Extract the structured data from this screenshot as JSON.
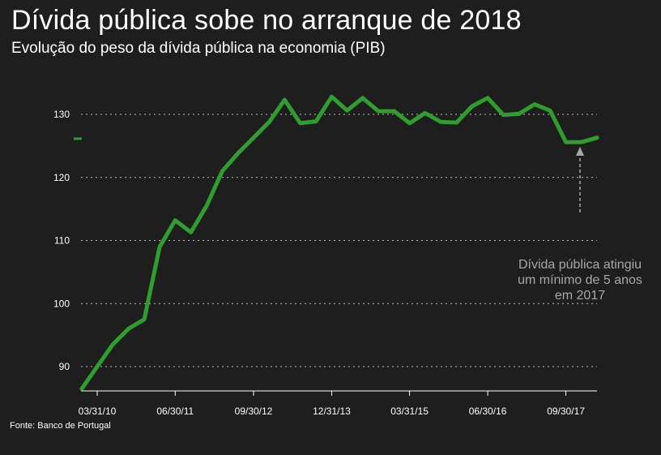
{
  "title": "Dívida pública sobe no arranque de 2018",
  "subtitle": "Evolução do peso da dívida pública na economia (PIB)",
  "source": "Fonte: Banco de Portugal",
  "colors": {
    "background": "#1e1e1e",
    "line": "#2f9e2f",
    "grid": "#bdbdbd",
    "text": "#ffffff",
    "annotation": "#a8a8a8"
  },
  "chart_data": {
    "type": "line",
    "title": "Dívida pública sobe no arranque de 2018",
    "xlabel": "",
    "ylabel": "",
    "ylim": [
      86,
      136
    ],
    "yticks": [
      90,
      100,
      110,
      120,
      130
    ],
    "x_tick_labels": [
      "03/31/10",
      "06/30/11",
      "09/30/12",
      "12/31/13",
      "03/31/15",
      "06/30/16",
      "09/30/17"
    ],
    "grid": "horizontal dotted",
    "legend": "none",
    "series": [
      {
        "x": [
          "12/31/09",
          "03/31/10",
          "06/30/10",
          "09/30/10",
          "12/31/10",
          "03/31/11",
          "06/30/11",
          "09/30/11",
          "12/31/11",
          "03/31/12",
          "06/30/12",
          "09/30/12",
          "12/31/12",
          "03/31/13",
          "06/30/13",
          "09/30/13",
          "12/31/13",
          "03/31/14",
          "06/30/14",
          "09/30/14",
          "12/31/14",
          "03/31/15",
          "06/30/15",
          "09/30/15",
          "12/31/15",
          "03/31/16",
          "06/30/16",
          "09/30/16",
          "12/31/16",
          "03/31/17",
          "06/30/17",
          "09/30/17",
          "12/31/17",
          "03/31/18"
        ],
        "values": [
          86.5,
          90.0,
          93.5,
          96.0,
          97.5,
          109.0,
          113.2,
          111.3,
          115.5,
          121.0,
          123.8,
          126.3,
          128.8,
          132.3,
          128.6,
          128.9,
          132.8,
          130.6,
          132.6,
          130.5,
          130.5,
          128.6,
          130.2,
          128.8,
          128.7,
          131.3,
          132.6,
          129.9,
          130.1,
          131.6,
          130.6,
          125.6,
          125.6,
          126.3
        ]
      }
    ],
    "annotations": [
      {
        "lines": [
          "Dívida pública atingiu",
          "um mínimo de 5 anos",
          "em 2017"
        ],
        "points_to": "09/30/17"
      }
    ]
  }
}
